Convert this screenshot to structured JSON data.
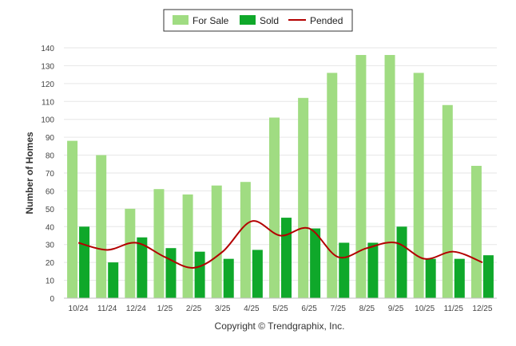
{
  "chart_data": {
    "type": "bar",
    "title": "",
    "xlabel": "",
    "ylabel": "Number of Homes",
    "ylim": [
      0,
      140
    ],
    "ytick_step": 10,
    "grid": true,
    "legend_position": "top-center",
    "categories": [
      "10/24",
      "11/24",
      "12/24",
      "1/25",
      "2/25",
      "3/25",
      "4/25",
      "5/25",
      "6/25",
      "7/25",
      "8/25",
      "9/25",
      "10/25",
      "11/25",
      "12/25"
    ],
    "series": [
      {
        "name": "For Sale",
        "kind": "bar",
        "color": "#a0dc82",
        "values": [
          88,
          80,
          50,
          61,
          58,
          63,
          65,
          101,
          112,
          126,
          136,
          136,
          126,
          108,
          74
        ]
      },
      {
        "name": "Sold",
        "kind": "bar",
        "color": "#0fa82a",
        "values": [
          40,
          20,
          34,
          28,
          26,
          22,
          27,
          45,
          39,
          31,
          31,
          40,
          22,
          22,
          24
        ]
      },
      {
        "name": "Pended",
        "kind": "line",
        "color": "#b30000",
        "values": [
          31,
          27,
          31,
          23,
          17,
          26,
          43,
          35,
          39,
          23,
          28,
          31,
          22,
          26,
          20
        ]
      }
    ],
    "credit": "Copyright © Trendgraphix, Inc."
  }
}
